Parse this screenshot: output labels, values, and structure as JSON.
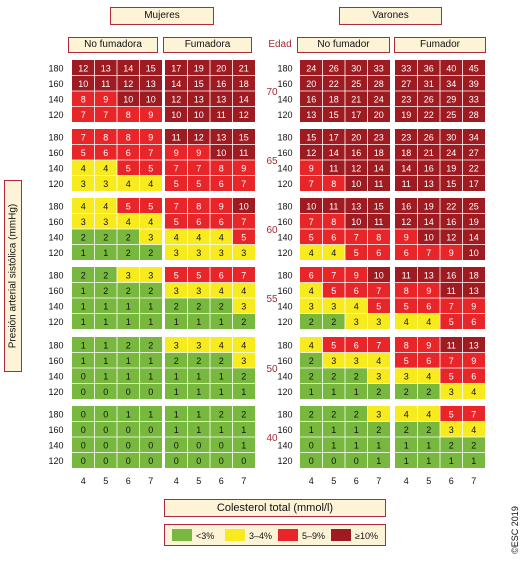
{
  "chart_data": {
    "type": "heatmap",
    "sexes": [
      {
        "label": "Mujeres",
        "groups": [
          {
            "label": "No fumadora",
            "panels": [
              [
                [
                  12,
                  13,
                  14,
                  15
                ],
                [
                  10,
                  11,
                  12,
                  13
                ],
                [
                  8,
                  9,
                  10,
                  10
                ],
                [
                  7,
                  7,
                  8,
                  9
                ]
              ],
              [
                [
                  7,
                  8,
                  8,
                  9
                ],
                [
                  5,
                  6,
                  6,
                  7
                ],
                [
                  4,
                  4,
                  5,
                  5
                ],
                [
                  3,
                  3,
                  4,
                  4
                ]
              ],
              [
                [
                  4,
                  4,
                  5,
                  5
                ],
                [
                  3,
                  3,
                  4,
                  4
                ],
                [
                  2,
                  2,
                  2,
                  3
                ],
                [
                  1,
                  1,
                  2,
                  2
                ]
              ],
              [
                [
                  2,
                  2,
                  3,
                  3
                ],
                [
                  1,
                  2,
                  2,
                  2
                ],
                [
                  1,
                  1,
                  1,
                  1
                ],
                [
                  1,
                  1,
                  1,
                  1
                ]
              ],
              [
                [
                  1,
                  1,
                  2,
                  2
                ],
                [
                  1,
                  1,
                  1,
                  1
                ],
                [
                  0,
                  1,
                  1,
                  1
                ],
                [
                  0,
                  0,
                  0,
                  0
                ]
              ],
              [
                [
                  0,
                  0,
                  1,
                  1
                ],
                [
                  0,
                  0,
                  0,
                  0
                ],
                [
                  0,
                  0,
                  0,
                  0
                ],
                [
                  0,
                  0,
                  0,
                  0
                ]
              ]
            ]
          },
          {
            "label": "Fumadora",
            "panels": [
              [
                [
                  17,
                  19,
                  20,
                  21
                ],
                [
                  14,
                  15,
                  16,
                  18
                ],
                [
                  12,
                  13,
                  13,
                  14
                ],
                [
                  10,
                  10,
                  11,
                  12
                ]
              ],
              [
                [
                  11,
                  12,
                  13,
                  15
                ],
                [
                  9,
                  9,
                  10,
                  11
                ],
                [
                  7,
                  7,
                  8,
                  9
                ],
                [
                  5,
                  5,
                  6,
                  7
                ]
              ],
              [
                [
                  7,
                  8,
                  9,
                  10
                ],
                [
                  5,
                  6,
                  6,
                  7
                ],
                [
                  4,
                  4,
                  4,
                  5
                ],
                [
                  3,
                  3,
                  3,
                  3
                ]
              ],
              [
                [
                  5,
                  5,
                  6,
                  7
                ],
                [
                  3,
                  3,
                  4,
                  4
                ],
                [
                  2,
                  2,
                  2,
                  3
                ],
                [
                  1,
                  1,
                  1,
                  2
                ]
              ],
              [
                [
                  3,
                  3,
                  4,
                  4
                ],
                [
                  2,
                  2,
                  2,
                  3
                ],
                [
                  1,
                  1,
                  1,
                  2
                ],
                [
                  1,
                  1,
                  1,
                  1
                ]
              ],
              [
                [
                  1,
                  1,
                  2,
                  2
                ],
                [
                  1,
                  1,
                  1,
                  1
                ],
                [
                  0,
                  0,
                  0,
                  1
                ],
                [
                  0,
                  0,
                  0,
                  0
                ]
              ]
            ]
          }
        ]
      },
      {
        "label": "Varones",
        "groups": [
          {
            "label": "No fumador",
            "panels": [
              [
                [
                  24,
                  26,
                  30,
                  33
                ],
                [
                  20,
                  22,
                  25,
                  28
                ],
                [
                  16,
                  18,
                  21,
                  24
                ],
                [
                  13,
                  15,
                  17,
                  20
                ]
              ],
              [
                [
                  15,
                  17,
                  20,
                  23
                ],
                [
                  12,
                  14,
                  16,
                  18
                ],
                [
                  9,
                  11,
                  12,
                  14
                ],
                [
                  7,
                  8,
                  10,
                  11
                ]
              ],
              [
                [
                  10,
                  11,
                  13,
                  15
                ],
                [
                  7,
                  8,
                  10,
                  11
                ],
                [
                  5,
                  6,
                  7,
                  8
                ],
                [
                  4,
                  4,
                  5,
                  6
                ]
              ],
              [
                [
                  6,
                  7,
                  9,
                  10
                ],
                [
                  4,
                  5,
                  6,
                  7
                ],
                [
                  3,
                  3,
                  4,
                  5
                ],
                [
                  2,
                  2,
                  3,
                  3
                ]
              ],
              [
                [
                  4,
                  5,
                  6,
                  7
                ],
                [
                  2,
                  3,
                  3,
                  4
                ],
                [
                  2,
                  2,
                  2,
                  3
                ],
                [
                  1,
                  1,
                  1,
                  2
                ]
              ],
              [
                [
                  2,
                  2,
                  2,
                  3
                ],
                [
                  1,
                  1,
                  1,
                  2
                ],
                [
                  0,
                  1,
                  1,
                  1
                ],
                [
                  0,
                  0,
                  0,
                  1
                ]
              ]
            ]
          },
          {
            "label": "Fumador",
            "panels": [
              [
                [
                  33,
                  36,
                  40,
                  45
                ],
                [
                  27,
                  31,
                  34,
                  39
                ],
                [
                  23,
                  26,
                  29,
                  33
                ],
                [
                  19,
                  22,
                  25,
                  28
                ]
              ],
              [
                [
                  23,
                  26,
                  30,
                  34
                ],
                [
                  18,
                  21,
                  24,
                  27
                ],
                [
                  14,
                  16,
                  19,
                  22
                ],
                [
                  11,
                  13,
                  15,
                  17
                ]
              ],
              [
                [
                  16,
                  19,
                  22,
                  25
                ],
                [
                  12,
                  14,
                  16,
                  19
                ],
                [
                  9,
                  10,
                  12,
                  14
                ],
                [
                  6,
                  7,
                  9,
                  10
                ]
              ],
              [
                [
                  11,
                  13,
                  16,
                  18
                ],
                [
                  8,
                  9,
                  11,
                  13
                ],
                [
                  5,
                  6,
                  7,
                  9
                ],
                [
                  4,
                  4,
                  5,
                  6
                ]
              ],
              [
                [
                  8,
                  9,
                  11,
                  13
                ],
                [
                  5,
                  6,
                  7,
                  9
                ],
                [
                  3,
                  4,
                  5,
                  6
                ],
                [
                  2,
                  2,
                  3,
                  4
                ]
              ],
              [
                [
                  4,
                  4,
                  5,
                  7
                ],
                [
                  2,
                  2,
                  3,
                  4
                ],
                [
                  1,
                  1,
                  2,
                  2
                ],
                [
                  1,
                  1,
                  1,
                  1
                ]
              ]
            ]
          }
        ]
      }
    ],
    "ages": [
      "70",
      "65",
      "60",
      "55",
      "50",
      "40"
    ],
    "bp_ticks": [
      "180",
      "160",
      "140",
      "120"
    ],
    "chol_ticks": [
      "4",
      "5",
      "6",
      "7"
    ],
    "edad_label": "Edad",
    "ylabel": "Presión arterial sistólica (mmHg)",
    "xlabel": "Colesterol total (mmol/l)",
    "legend": [
      {
        "label": "<3%",
        "color": "#79b83e"
      },
      {
        "label": "3–4%",
        "color": "#f7ea1f"
      },
      {
        "label": "5–9%",
        "color": "#e8262a"
      },
      {
        "label": "≥10%",
        "color": "#9e1b21"
      }
    ],
    "copyright": "©ESC 2019"
  }
}
